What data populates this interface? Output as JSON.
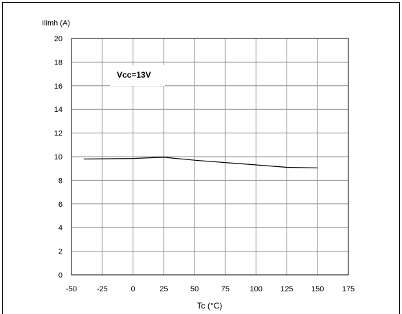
{
  "chart_data": {
    "type": "line",
    "ylabel": "Ilimh (A)",
    "xlabel": "Tc (°C)",
    "annotation": "Vcc=13V",
    "xlim": [
      -50,
      175
    ],
    "ylim": [
      0,
      20
    ],
    "x_ticks": [
      -50,
      -25,
      0,
      25,
      50,
      75,
      100,
      125,
      150,
      175
    ],
    "y_ticks": [
      0,
      2,
      4,
      6,
      8,
      10,
      12,
      14,
      16,
      18,
      20
    ],
    "grid": true,
    "series": [
      {
        "x": [
          -40,
          0,
          25,
          50,
          75,
          100,
          125,
          150
        ],
        "values": [
          9.8,
          9.85,
          9.95,
          9.7,
          9.5,
          9.3,
          9.1,
          9.05
        ]
      }
    ]
  }
}
